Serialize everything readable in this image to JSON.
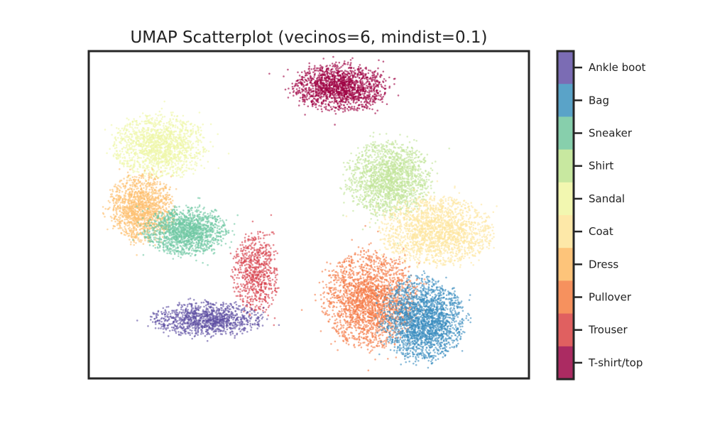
{
  "chart_data": {
    "type": "scatter",
    "title": "UMAP Scatterplot (vecinos=6, mindist=0.1)",
    "xlabel": "",
    "ylabel": "",
    "axes_ticks": "none",
    "grid": false,
    "legend": "colorbar at right",
    "colorbar": {
      "labels": [
        "Ankle boot",
        "Bag",
        "Sneaker",
        "Shirt",
        "Sandal",
        "Coat",
        "Dress",
        "Pullover",
        "Trouser",
        "T-shirt/top"
      ],
      "colors": [
        "#7b6cb4",
        "#5aa3c8",
        "#87cfac",
        "#c8e8a0",
        "#f2f7b0",
        "#fde8a8",
        "#fdc47a",
        "#f6915e",
        "#e06060",
        "#ab2b62"
      ]
    },
    "clusters": [
      {
        "label": "T-shirt/top",
        "color": "#9e0142",
        "center": [
          0.57,
          0.89
        ],
        "spread": [
          0.1,
          0.07
        ],
        "count": 1600
      },
      {
        "label": "Sandal",
        "color": "#eef7a6",
        "center": [
          0.16,
          0.71
        ],
        "spread": [
          0.1,
          0.09
        ],
        "count": 1500
      },
      {
        "label": "Dress",
        "color": "#fdbf6f",
        "center": [
          0.12,
          0.52
        ],
        "spread": [
          0.07,
          0.1
        ],
        "count": 1400
      },
      {
        "label": "Sneaker",
        "color": "#6fc8a4",
        "center": [
          0.22,
          0.45
        ],
        "spread": [
          0.09,
          0.07
        ],
        "count": 1500
      },
      {
        "label": "Shirt",
        "color": "#c2e59a",
        "center": [
          0.68,
          0.61
        ],
        "spread": [
          0.09,
          0.11
        ],
        "count": 1700
      },
      {
        "label": "Coat",
        "color": "#fee6a0",
        "center": [
          0.79,
          0.45
        ],
        "spread": [
          0.12,
          0.1
        ],
        "count": 1900
      },
      {
        "label": "Pullover",
        "color": "#f57b48",
        "center": [
          0.64,
          0.24
        ],
        "spread": [
          0.1,
          0.14
        ],
        "count": 2200
      },
      {
        "label": "Bag",
        "color": "#3c8ec0",
        "center": [
          0.76,
          0.18
        ],
        "spread": [
          0.09,
          0.12
        ],
        "count": 2200
      },
      {
        "label": "Trouser",
        "color": "#d73f4b",
        "center": [
          0.38,
          0.32
        ],
        "spread": [
          0.05,
          0.12
        ],
        "count": 700
      },
      {
        "label": "Ankle boot",
        "color": "#5e4fa2",
        "center": [
          0.27,
          0.18
        ],
        "spread": [
          0.12,
          0.05
        ],
        "count": 1100
      }
    ]
  }
}
